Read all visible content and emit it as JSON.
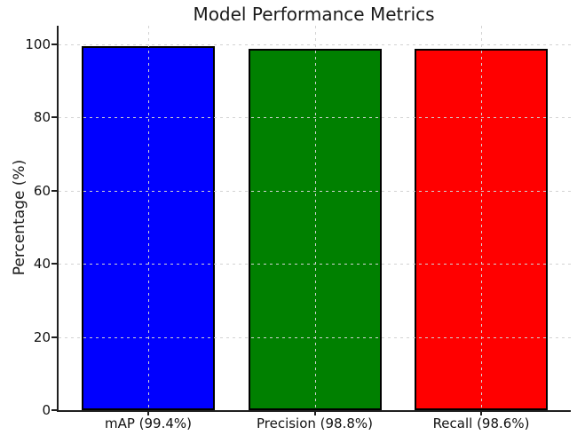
{
  "chart_data": {
    "type": "bar",
    "title": "Model Performance Metrics",
    "xlabel": "",
    "ylabel": "Percentage (%)",
    "categories": [
      "mAP (99.4%)",
      "Precision (98.8%)",
      "Recall (98.6%)"
    ],
    "values": [
      99.4,
      98.8,
      98.6
    ],
    "bar_colors": [
      "#0000ff",
      "#008000",
      "#ff0000"
    ],
    "bar_edge_color": "#000000",
    "yticks": [
      0,
      20,
      40,
      60,
      80,
      100
    ],
    "ylim": [
      0,
      105
    ],
    "legend": "none",
    "grid": {
      "horizontal": true,
      "vertical": true,
      "linestyle": "dashed",
      "color": "#d3d3d3",
      "drawn_above_bars": true
    }
  }
}
